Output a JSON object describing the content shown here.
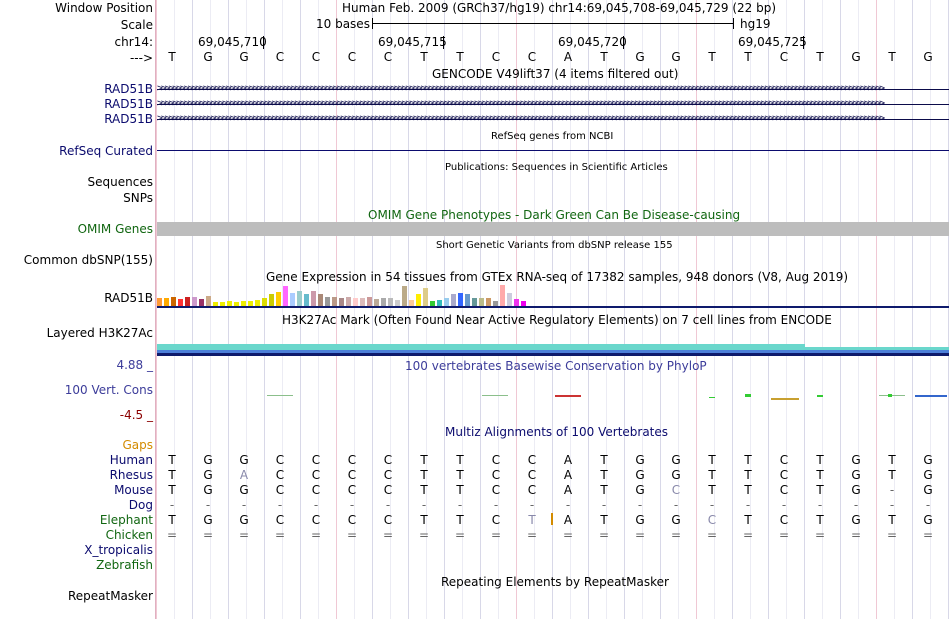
{
  "header": {
    "window_position_label": "Window Position",
    "scale_label": "Scale",
    "chrom_label": "chr14:",
    "arrow_label": "--->",
    "assembly_title": "Human Feb. 2009 (GRCh37/hg19)   chr14:69,045,708-69,045,729 (22 bp)",
    "scale_text": "10 bases",
    "scale_assembly": "hg19",
    "positions": [
      "69,045,710",
      "69,045,715",
      "69,045,720",
      "69,045,725"
    ]
  },
  "colors": {
    "track_label": "#0b0b6e",
    "omim_green": "#116611",
    "gaps_orange": "#d38b00",
    "phylop_blue": "#3c3c9a",
    "phylop_neg": "#8b0000",
    "h3k_teal": "#6ad7cc",
    "h3k_navy": "#0e1a6c"
  },
  "reference_sequence": [
    "T",
    "G",
    "G",
    "C",
    "C",
    "C",
    "C",
    "T",
    "T",
    "C",
    "C",
    "A",
    "T",
    "G",
    "G",
    "T",
    "T",
    "C",
    "T",
    "G",
    "T",
    "G"
  ],
  "gencode": {
    "title": "GENCODE V49lift37 (4 items filtered out)",
    "genes": [
      "RAD51B",
      "RAD51B",
      "RAD51B"
    ]
  },
  "refseq": {
    "title": "RefSeq genes from NCBI",
    "label": "RefSeq Curated"
  },
  "publications": {
    "title": "Publications: Sequences in Scientific Articles",
    "labels": [
      "Sequences",
      "SNPs"
    ]
  },
  "omim": {
    "title": "OMIM Gene Phenotypes - Dark Green Can Be Disease-causing",
    "label": "OMIM Genes"
  },
  "dbsnp": {
    "title": "Short Genetic Variants from dbSNP release 155",
    "label": "Common dbSNP(155)"
  },
  "gtex": {
    "title": "Gene Expression in 54 tissues from GTEx RNA-seq of 17382 samples, 948 donors (V8, Aug 2019)",
    "label": "RAD51B",
    "bars": [
      {
        "level": 0.38,
        "color": "#ff9933"
      },
      {
        "level": 0.38,
        "color": "#ffaa00"
      },
      {
        "level": 0.42,
        "color": "#cc6600"
      },
      {
        "level": 0.35,
        "color": "#ff3333"
      },
      {
        "level": 0.45,
        "color": "#cc2222"
      },
      {
        "level": 0.42,
        "color": "#cc99cc"
      },
      {
        "level": 0.35,
        "color": "#993366"
      },
      {
        "level": 0.48,
        "color": "#ccaa88"
      },
      {
        "level": 0.2,
        "color": "#eeee00"
      },
      {
        "level": 0.2,
        "color": "#eeee00"
      },
      {
        "level": 0.22,
        "color": "#eeee00"
      },
      {
        "level": 0.2,
        "color": "#eeee00"
      },
      {
        "level": 0.22,
        "color": "#eeee00"
      },
      {
        "level": 0.25,
        "color": "#eeee00"
      },
      {
        "level": 0.28,
        "color": "#eeee00"
      },
      {
        "level": 0.4,
        "color": "#dddd00"
      },
      {
        "level": 0.55,
        "color": "#cccc00"
      },
      {
        "level": 0.65,
        "color": "#ffcc00"
      },
      {
        "level": 0.95,
        "color": "#ff66ff"
      },
      {
        "level": 0.6,
        "color": "#aaccff"
      },
      {
        "level": 0.7,
        "color": "#99cccc"
      },
      {
        "level": 0.55,
        "color": "#66bbcc"
      },
      {
        "level": 0.7,
        "color": "#cc99aa"
      },
      {
        "level": 0.55,
        "color": "#aa8877"
      },
      {
        "level": 0.45,
        "color": "#999999"
      },
      {
        "level": 0.45,
        "color": "#bb9988"
      },
      {
        "level": 0.4,
        "color": "#aa8888"
      },
      {
        "level": 0.45,
        "color": "#ccaaaa"
      },
      {
        "level": 0.4,
        "color": "#ffcccc"
      },
      {
        "level": 0.4,
        "color": "#ddbbbb"
      },
      {
        "level": 0.45,
        "color": "#cc9999"
      },
      {
        "level": 0.35,
        "color": "#bbaa99"
      },
      {
        "level": 0.4,
        "color": "#aaaaaa"
      },
      {
        "level": 0.4,
        "color": "#bbbbbb"
      },
      {
        "level": 0.3,
        "color": "#cccccc"
      },
      {
        "level": 0.95,
        "color": "#bbaa88"
      },
      {
        "level": 0.3,
        "color": "#ffcc99"
      },
      {
        "level": 0.55,
        "color": "#ffee00"
      },
      {
        "level": 0.85,
        "color": "#ddcc88"
      },
      {
        "level": 0.25,
        "color": "#33cc33"
      },
      {
        "level": 0.3,
        "color": "#33bbbb"
      },
      {
        "level": 0.4,
        "color": "#99ccee"
      },
      {
        "level": 0.55,
        "color": "#aaaacc"
      },
      {
        "level": 0.6,
        "color": "#3366ff"
      },
      {
        "level": 0.55,
        "color": "#6699cc"
      },
      {
        "level": 0.4,
        "color": "#669999"
      },
      {
        "level": 0.4,
        "color": "#bbbb88"
      },
      {
        "level": 0.4,
        "color": "#cc9966"
      },
      {
        "level": 0.25,
        "color": "#999999"
      },
      {
        "level": 1.0,
        "color": "#ffaaaa"
      },
      {
        "level": 0.6,
        "color": "#ccccdd"
      },
      {
        "level": 0.35,
        "color": "#ee33ee"
      },
      {
        "level": 0.25,
        "color": "#ee00ee"
      },
      {
        "level": 0.3,
        "color": "#ffffff"
      }
    ]
  },
  "h3k27ac": {
    "title": "H3K27Ac Mark (Often Found Near Active Regulatory Elements) on 7 cell lines from ENCODE",
    "label": "Layered H3K27Ac"
  },
  "phylop": {
    "title": "100 vertebrates Basewise Conservation by PhyloP",
    "label": "100 Vert. Cons",
    "max_label": "4.88 _",
    "min_label": "-4.5 _"
  },
  "multiz": {
    "title": "Multiz Alignments of 100 Vertebrates",
    "gaps_label": "Gaps",
    "species": [
      {
        "name": "Human",
        "seq": [
          "T",
          "G",
          "G",
          "C",
          "C",
          "C",
          "C",
          "T",
          "T",
          "C",
          "C",
          "A",
          "T",
          "G",
          "G",
          "T",
          "T",
          "C",
          "T",
          "G",
          "T",
          "G"
        ]
      },
      {
        "name": "Rhesus",
        "seq": [
          "T",
          "G",
          "A",
          "C",
          "C",
          "C",
          "C",
          "T",
          "T",
          "C",
          "C",
          "A",
          "T",
          "G",
          "G",
          "T",
          "T",
          "C",
          "T",
          "G",
          "T",
          "G"
        ]
      },
      {
        "name": "Mouse",
        "seq": [
          "T",
          "G",
          "G",
          "C",
          "C",
          "C",
          "C",
          "T",
          "T",
          "C",
          "C",
          "A",
          "T",
          "G",
          "C",
          "T",
          "T",
          "C",
          "T",
          "G",
          "-",
          "G"
        ]
      },
      {
        "name": "Dog",
        "seq": [
          "-",
          "-",
          "-",
          "-",
          "-",
          "-",
          "-",
          "-",
          "-",
          "-",
          "-",
          "-",
          "-",
          "-",
          "-",
          "-",
          "-",
          "-",
          "-",
          "-",
          "-",
          "-"
        ]
      },
      {
        "name": "Elephant",
        "seq": [
          "T",
          "G",
          "G",
          "C",
          "C",
          "C",
          "C",
          "T",
          "T",
          "C",
          "T",
          "A",
          "T",
          "G",
          "G",
          "C",
          "T",
          "C",
          "T",
          "G",
          "T",
          "G"
        ]
      },
      {
        "name": "Chicken",
        "seq": [
          "=",
          "=",
          "=",
          "=",
          "=",
          "=",
          "=",
          "=",
          "=",
          "=",
          "=",
          "=",
          "=",
          "=",
          "=",
          "=",
          "=",
          "=",
          "=",
          "=",
          "=",
          "="
        ]
      },
      {
        "name": "X_tropicalis",
        "seq": [
          "",
          "",
          "",
          "",
          "",
          "",
          "",
          "",
          "",
          "",
          "",
          "",
          "",
          "",
          "",
          "",
          "",
          "",
          "",
          "",
          "",
          ""
        ]
      },
      {
        "name": "Zebrafish",
        "seq": [
          "",
          "",
          "",
          "",
          "",
          "",
          "",
          "",
          "",
          "",
          "",
          "",
          "",
          "",
          "",
          "",
          "",
          "",
          "",
          "",
          "",
          ""
        ]
      }
    ]
  },
  "repeatmasker": {
    "title": "Repeating Elements by RepeatMasker",
    "label": "RepeatMasker"
  }
}
